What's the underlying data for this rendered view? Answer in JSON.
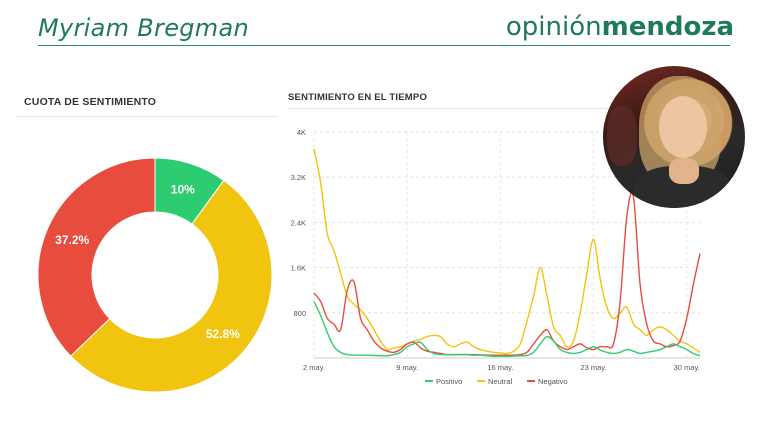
{
  "header": {
    "title": "Myriam Bregman",
    "brand_light": "opinión",
    "brand_bold": "mendoza"
  },
  "colors": {
    "brand": "#1f7a5a",
    "positivo": "#2ecc71",
    "neutral": "#f1c40f",
    "negativo": "#e74c3c"
  },
  "left_panel": {
    "title": "CUOTA DE SENTIMIENTO"
  },
  "right_panel": {
    "title": "SENTIMIENTO EN EL TIEMPO"
  },
  "photo": {
    "icon": "person-portrait"
  },
  "chart_data": [
    {
      "type": "pie",
      "title": "CUOTA DE SENTIMIENTO",
      "donut": true,
      "slices": [
        {
          "label": "10%",
          "value": 10.0,
          "color": "#2ecc71"
        },
        {
          "label": "52.8%",
          "value": 52.8,
          "color": "#f1c40f"
        },
        {
          "label": "37.2%",
          "value": 37.2,
          "color": "#e74c3c"
        }
      ]
    },
    {
      "type": "line",
      "title": "SENTIMIENTO EN EL TIEMPO",
      "x": [
        2,
        2.5,
        3,
        3.5,
        4,
        4.5,
        5,
        5.5,
        6,
        6.5,
        7,
        7.5,
        8,
        8.5,
        9,
        9.5,
        10,
        10.5,
        11,
        11.5,
        12,
        12.5,
        13,
        13.5,
        14,
        14.5,
        15,
        15.5,
        16,
        16.5,
        17,
        17.5,
        18,
        18.5,
        19,
        19.5,
        20,
        20.5,
        21,
        21.5,
        22,
        22.5,
        23,
        23.5,
        24,
        24.5,
        25,
        25.5,
        26,
        26.5,
        27,
        27.5,
        28,
        28.5,
        29,
        29.5,
        30,
        30.5,
        31
      ],
      "xlim": [
        2,
        31
      ],
      "ylim": [
        0,
        4000
      ],
      "y_ticks": [
        800,
        1600,
        2400,
        3200,
        4000
      ],
      "y_tick_labels": [
        "800",
        "1.6K",
        "2.4K",
        "3.2K",
        "4K"
      ],
      "x_ticks": [
        2,
        9,
        16,
        23,
        30
      ],
      "x_tick_labels": [
        "2 may.",
        "9 may.",
        "16 may.",
        "23 may.",
        "30 may."
      ],
      "grid": true,
      "legend_position": "bottom",
      "series": [
        {
          "name": "Positivo",
          "color": "#2ecc71",
          "values": [
            1000,
            750,
            450,
            200,
            100,
            60,
            50,
            50,
            50,
            45,
            40,
            40,
            60,
            100,
            200,
            250,
            280,
            150,
            80,
            60,
            60,
            60,
            60,
            60,
            50,
            50,
            40,
            30,
            30,
            30,
            35,
            40,
            45,
            100,
            250,
            380,
            300,
            150,
            100,
            80,
            100,
            150,
            200,
            140,
            100,
            80,
            100,
            150,
            120,
            80,
            100,
            120,
            150,
            200,
            250,
            200,
            150,
            80,
            40
          ]
        },
        {
          "name": "Neutral",
          "color": "#f1c40f",
          "values": [
            3700,
            3100,
            2200,
            1900,
            1500,
            1100,
            950,
            850,
            700,
            500,
            300,
            150,
            180,
            200,
            250,
            300,
            330,
            380,
            400,
            380,
            250,
            200,
            250,
            280,
            200,
            150,
            120,
            100,
            90,
            80,
            120,
            250,
            650,
            1100,
            1600,
            1100,
            550,
            400,
            200,
            300,
            800,
            1500,
            2100,
            1400,
            900,
            700,
            800,
            900,
            600,
            500,
            400,
            500,
            550,
            500,
            400,
            300,
            250,
            180,
            100
          ]
        },
        {
          "name": "Negativo",
          "color": "#e74c3c",
          "values": [
            1150,
            1000,
            700,
            600,
            500,
            1200,
            1350,
            700,
            500,
            300,
            180,
            120,
            100,
            150,
            250,
            280,
            180,
            120,
            100,
            80,
            60,
            60,
            60,
            60,
            60,
            55,
            50,
            50,
            50,
            50,
            50,
            60,
            100,
            250,
            400,
            500,
            300,
            200,
            150,
            200,
            250,
            180,
            150,
            200,
            200,
            250,
            1000,
            2500,
            2850,
            1300,
            600,
            300,
            250,
            200,
            220,
            300,
            700,
            1300,
            1850
          ]
        }
      ]
    }
  ]
}
